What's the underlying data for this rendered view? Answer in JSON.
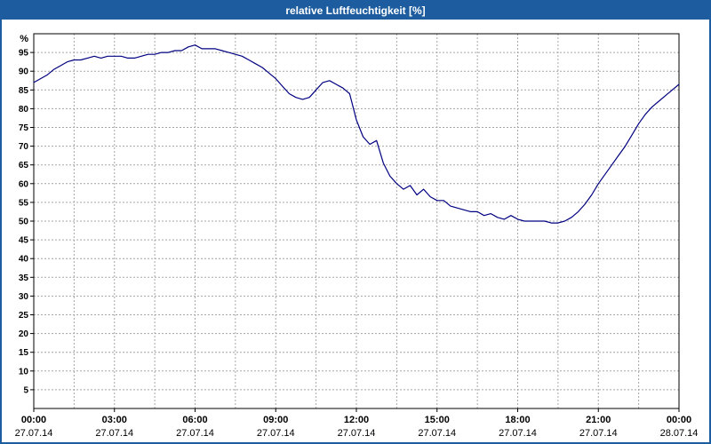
{
  "window": {
    "title": "relative Luftfeuchtigkeit [%]"
  },
  "colors": {
    "titlebar": "#1d5c9e",
    "border": "#1d5c9e",
    "line": "#000080",
    "grid": "#a6a6a6",
    "axis": "#000000",
    "plot_bg": "#ffffff"
  },
  "chart_data": {
    "type": "line",
    "title": "relative Luftfeuchtigkeit [%]",
    "xlabel": "",
    "ylabel": "%",
    "xlim": [
      0,
      24
    ],
    "ylim": [
      0,
      100
    ],
    "grid": true,
    "minor_x_grid_step_hours": 1.5,
    "y_ticks": [
      5,
      10,
      15,
      20,
      25,
      30,
      35,
      40,
      45,
      50,
      55,
      60,
      65,
      70,
      75,
      80,
      85,
      90,
      95
    ],
    "x_ticks": [
      {
        "hour": 0,
        "time": "00:00",
        "date": "27.07.14"
      },
      {
        "hour": 3,
        "time": "03:00",
        "date": "27.07.14"
      },
      {
        "hour": 6,
        "time": "06:00",
        "date": "27.07.14"
      },
      {
        "hour": 9,
        "time": "09:00",
        "date": "27.07.14"
      },
      {
        "hour": 12,
        "time": "12:00",
        "date": "27.07.14"
      },
      {
        "hour": 15,
        "time": "15:00",
        "date": "27.07.14"
      },
      {
        "hour": 18,
        "time": "18:00",
        "date": "27.07.14"
      },
      {
        "hour": 21,
        "time": "21:00",
        "date": "27.07.14"
      },
      {
        "hour": 24,
        "time": "00:00",
        "date": "28.07.14"
      }
    ],
    "series": [
      {
        "name": "relative Luftfeuchtigkeit",
        "color": "#000080",
        "x_start_hour": 0,
        "x_step_hours": 0.25,
        "values": [
          87,
          88,
          89,
          90.5,
          91.5,
          92.5,
          93,
          93,
          93.5,
          94,
          93.5,
          94,
          94,
          94,
          93.5,
          93.5,
          94,
          94.5,
          94.5,
          95,
          95,
          95.5,
          95.5,
          96.5,
          97,
          96,
          96,
          96,
          95.5,
          95,
          94.5,
          94,
          93,
          92,
          91,
          89.5,
          88,
          86,
          84,
          83,
          82.5,
          83,
          85,
          87,
          87.5,
          86.5,
          85.5,
          84,
          77,
          72.5,
          70.5,
          71.5,
          65.5,
          62,
          60,
          58.5,
          59.5,
          57,
          58.5,
          56.5,
          55.5,
          55.5,
          54,
          53.5,
          53,
          52.5,
          52.5,
          51.5,
          52,
          51,
          50.5,
          51.5,
          50.5,
          50,
          50,
          50,
          50,
          49.5,
          49.5,
          50,
          51,
          52.5,
          54.5,
          57,
          60,
          62.5,
          65,
          67.5,
          70,
          73,
          76,
          78.5,
          80.5,
          82,
          83.5,
          85,
          86.5
        ]
      }
    ]
  }
}
